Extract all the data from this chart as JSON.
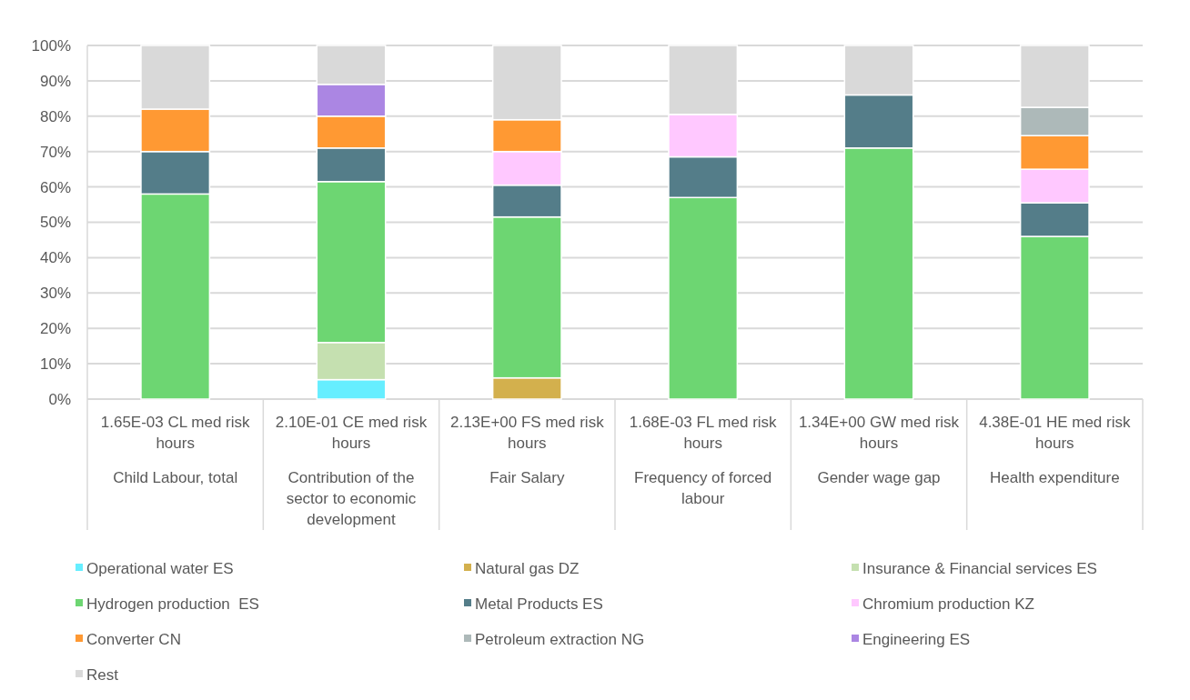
{
  "chart_data": {
    "type": "bar",
    "stacked": true,
    "categories": [
      "1.65E-03 CL med risk hours\nChild Labour, total",
      "2.10E-01 CE med risk hours\nContribution of the sector to economic development",
      "2.13E+00 FS med risk hours\nFair Salary",
      "1.68E-03 FL med risk hours\nFrequency of forced labour",
      "1.34E+00 GW med risk hours\nGender wage gap",
      "4.38E-01 HE med risk hours\nHealth expenditure"
    ],
    "series": [
      {
        "name": "Operational water ES",
        "color": "#66eeff",
        "values": [
          null,
          5.5,
          null,
          null,
          null,
          null
        ]
      },
      {
        "name": "Natural gas DZ",
        "color": "#d3b04d",
        "values": [
          null,
          null,
          6,
          null,
          null,
          null
        ]
      },
      {
        "name": "Insurance & Financial services ES",
        "color": "#c5e0b0",
        "values": [
          null,
          10.5,
          null,
          null,
          null,
          null
        ]
      },
      {
        "name": "Hydrogen production  ES",
        "color": "#6dd672",
        "values": [
          58,
          45.5,
          45.5,
          57,
          71,
          46
        ]
      },
      {
        "name": "Metal Products ES",
        "color": "#547d89",
        "values": [
          12,
          9.5,
          9,
          11.5,
          15,
          9.5
        ]
      },
      {
        "name": "Chromium production KZ",
        "color": "#ffc8ff",
        "values": [
          null,
          null,
          9.5,
          12,
          null,
          9.5
        ]
      },
      {
        "name": "Converter CN",
        "color": "#ff9933",
        "values": [
          12,
          9,
          9,
          null,
          null,
          9.5
        ]
      },
      {
        "name": "Petroleum extraction NG",
        "color": "#adb9b9",
        "values": [
          null,
          null,
          null,
          null,
          null,
          8
        ]
      },
      {
        "name": "Engineering ES",
        "color": "#ab86e3",
        "values": [
          null,
          9,
          null,
          null,
          null,
          null
        ]
      },
      {
        "name": "Rest",
        "color": "#d9d9d9",
        "values": [
          18,
          11,
          21,
          19.5,
          14,
          17.5
        ]
      }
    ],
    "ylim": [
      0,
      100
    ],
    "yticks": [
      {
        "value": 0,
        "label": "0%"
      },
      {
        "value": 10,
        "label": "10%"
      },
      {
        "value": 20,
        "label": "20%"
      },
      {
        "value": 30,
        "label": "30%"
      },
      {
        "value": 40,
        "label": "40%"
      },
      {
        "value": 50,
        "label": "50%"
      },
      {
        "value": 60,
        "label": "60%"
      },
      {
        "value": 70,
        "label": "70%"
      },
      {
        "value": 80,
        "label": "80%"
      },
      {
        "value": 90,
        "label": "90%"
      },
      {
        "value": 100,
        "label": "100%"
      }
    ],
    "grid": "y",
    "legend": "bottom"
  }
}
